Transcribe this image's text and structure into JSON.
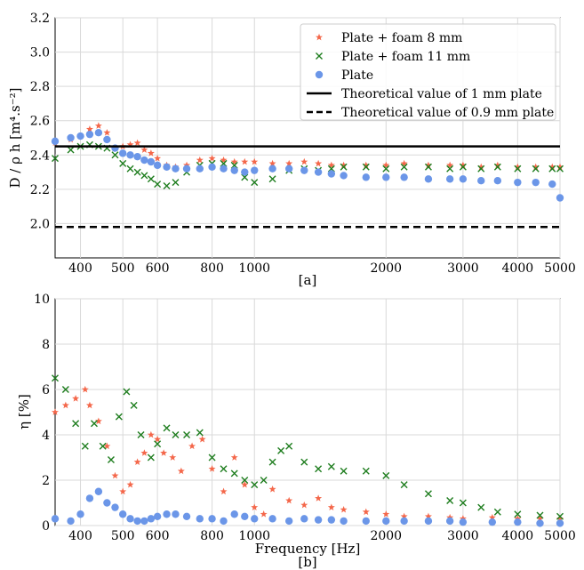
{
  "chart_data": [
    {
      "id": "top",
      "type": "scatter",
      "xscale": "log",
      "xlim": [
        350,
        5000
      ],
      "ylim": [
        1.8,
        3.2
      ],
      "x_ticks": [
        400,
        500,
        600,
        800,
        1000,
        2000,
        3000,
        4000,
        5000
      ],
      "x_tick_labels": [
        "400",
        "500",
        "600",
        "800",
        "1000",
        "2000",
        "3000",
        "4000",
        "5000"
      ],
      "y_ticks": [
        2.0,
        2.2,
        2.4,
        2.6,
        2.8,
        3.0,
        3.2
      ],
      "y_tick_labels": [
        "2.0",
        "2.2",
        "2.4",
        "2.6",
        "2.8",
        "3.0",
        "3.2"
      ],
      "ylabel": "D / ρ h [m⁴.s⁻²]",
      "xlabel": "[a]",
      "grid": true,
      "legend_position": "top-right",
      "series": [
        {
          "name": "Plate + foam 8 mm",
          "marker": "star",
          "color": "#f4674a",
          "x": [
            350,
            380,
            400,
            420,
            440,
            460,
            480,
            500,
            520,
            540,
            560,
            580,
            600,
            630,
            660,
            700,
            750,
            800,
            850,
            900,
            950,
            1000,
            1100,
            1200,
            1300,
            1400,
            1500,
            1600,
            1800,
            2000,
            2200,
            2500,
            2800,
            3000,
            3300,
            3600,
            4000,
            4400,
            4800,
            5000
          ],
          "y": [
            2.47,
            2.49,
            2.51,
            2.55,
            2.57,
            2.53,
            2.44,
            2.45,
            2.46,
            2.47,
            2.43,
            2.41,
            2.38,
            2.34,
            2.33,
            2.34,
            2.37,
            2.38,
            2.37,
            2.36,
            2.36,
            2.36,
            2.35,
            2.35,
            2.36,
            2.35,
            2.34,
            2.34,
            2.34,
            2.34,
            2.35,
            2.34,
            2.34,
            2.34,
            2.33,
            2.34,
            2.33,
            2.33,
            2.33,
            2.33
          ]
        },
        {
          "name": "Plate + foam 11 mm",
          "marker": "x",
          "color": "#1e7d1e",
          "x": [
            350,
            380,
            400,
            420,
            440,
            460,
            480,
            500,
            520,
            540,
            560,
            580,
            600,
            630,
            660,
            700,
            750,
            800,
            850,
            900,
            950,
            1000,
            1100,
            1200,
            1300,
            1400,
            1500,
            1600,
            1800,
            2000,
            2200,
            2500,
            2800,
            3000,
            3300,
            3600,
            4000,
            4400,
            4800,
            5000
          ],
          "y": [
            2.38,
            2.43,
            2.45,
            2.46,
            2.45,
            2.44,
            2.4,
            2.35,
            2.32,
            2.3,
            2.28,
            2.26,
            2.23,
            2.22,
            2.24,
            2.3,
            2.34,
            2.35,
            2.35,
            2.34,
            2.27,
            2.24,
            2.26,
            2.31,
            2.32,
            2.31,
            2.32,
            2.33,
            2.33,
            2.32,
            2.33,
            2.33,
            2.32,
            2.33,
            2.32,
            2.33,
            2.32,
            2.32,
            2.32,
            2.32
          ]
        },
        {
          "name": "Plate",
          "marker": "circle",
          "color": "#6b96e8",
          "x": [
            350,
            380,
            400,
            420,
            440,
            460,
            480,
            500,
            520,
            540,
            560,
            580,
            600,
            630,
            660,
            700,
            750,
            800,
            850,
            900,
            950,
            1000,
            1100,
            1200,
            1300,
            1400,
            1500,
            1600,
            1800,
            2000,
            2200,
            2500,
            2800,
            3000,
            3300,
            3600,
            4000,
            4400,
            4800,
            5000
          ],
          "y": [
            2.48,
            2.5,
            2.51,
            2.52,
            2.53,
            2.49,
            2.44,
            2.41,
            2.4,
            2.39,
            2.37,
            2.36,
            2.34,
            2.33,
            2.32,
            2.32,
            2.32,
            2.33,
            2.32,
            2.31,
            2.3,
            2.31,
            2.32,
            2.32,
            2.31,
            2.3,
            2.29,
            2.28,
            2.27,
            2.27,
            2.27,
            2.26,
            2.26,
            2.26,
            2.25,
            2.25,
            2.24,
            2.24,
            2.23,
            2.15
          ]
        },
        {
          "name": "Theoretical value of 1 mm plate",
          "marker": "solid-line",
          "color": "#000000",
          "x": [
            350,
            5000
          ],
          "y": [
            2.45,
            2.45
          ]
        },
        {
          "name": "Theoretical value of 0.9 mm plate",
          "marker": "dashed-line",
          "color": "#000000",
          "x": [
            350,
            5000
          ],
          "y": [
            1.98,
            1.98
          ]
        }
      ]
    },
    {
      "id": "bottom",
      "type": "scatter",
      "xscale": "log",
      "xlim": [
        350,
        5000
      ],
      "ylim": [
        0,
        10
      ],
      "x_ticks": [
        400,
        500,
        600,
        800,
        1000,
        2000,
        3000,
        4000,
        5000
      ],
      "x_tick_labels": [
        "400",
        "500",
        "600",
        "800",
        "1000",
        "2000",
        "3000",
        "4000",
        "5000"
      ],
      "y_ticks": [
        0,
        2,
        4,
        6,
        8,
        10
      ],
      "y_tick_labels": [
        "0",
        "2",
        "4",
        "6",
        "8",
        "10"
      ],
      "ylabel": "η [%]",
      "xlabel": "Frequency [Hz]",
      "caption": "[b]",
      "grid": true,
      "series": [
        {
          "name": "Plate + foam 8 mm",
          "marker": "star",
          "color": "#f4674a",
          "x": [
            350,
            370,
            390,
            410,
            420,
            440,
            460,
            480,
            500,
            520,
            540,
            560,
            580,
            600,
            620,
            650,
            680,
            720,
            760,
            800,
            850,
            900,
            950,
            1000,
            1050,
            1100,
            1200,
            1300,
            1400,
            1500,
            1600,
            1800,
            2000,
            2200,
            2500,
            2800,
            3000,
            3500,
            4000,
            4500,
            5000
          ],
          "y": [
            5.0,
            5.3,
            5.6,
            6.0,
            5.3,
            4.6,
            3.5,
            2.2,
            1.5,
            1.8,
            2.8,
            3.2,
            4.0,
            3.8,
            3.2,
            3.0,
            2.4,
            3.5,
            3.8,
            2.5,
            1.5,
            3.0,
            1.8,
            0.8,
            0.5,
            1.6,
            1.1,
            0.9,
            1.2,
            0.8,
            0.7,
            0.6,
            0.5,
            0.4,
            0.4,
            0.35,
            0.3,
            0.35,
            0.3,
            0.3,
            0.3
          ]
        },
        {
          "name": "Plate + foam 11 mm",
          "marker": "x",
          "color": "#1e7d1e",
          "x": [
            350,
            370,
            390,
            410,
            430,
            450,
            470,
            490,
            510,
            530,
            550,
            580,
            600,
            630,
            660,
            700,
            750,
            800,
            850,
            900,
            950,
            1000,
            1050,
            1100,
            1150,
            1200,
            1300,
            1400,
            1500,
            1600,
            1800,
            2000,
            2200,
            2500,
            2800,
            3000,
            3300,
            3600,
            4000,
            4500,
            5000
          ],
          "y": [
            6.5,
            6.0,
            4.5,
            3.5,
            4.5,
            3.5,
            2.9,
            4.8,
            5.9,
            5.3,
            4.0,
            3.0,
            3.6,
            4.3,
            4.0,
            4.0,
            4.1,
            3.0,
            2.5,
            2.3,
            2.0,
            1.8,
            2.0,
            2.8,
            3.3,
            3.5,
            2.8,
            2.5,
            2.6,
            2.4,
            2.4,
            2.2,
            1.8,
            1.4,
            1.1,
            1.0,
            0.8,
            0.6,
            0.5,
            0.45,
            0.4
          ]
        },
        {
          "name": "Plate",
          "marker": "circle",
          "color": "#6b96e8",
          "x": [
            350,
            380,
            400,
            420,
            440,
            460,
            480,
            500,
            520,
            540,
            560,
            580,
            600,
            630,
            660,
            700,
            750,
            800,
            850,
            900,
            950,
            1000,
            1100,
            1200,
            1300,
            1400,
            1500,
            1600,
            1800,
            2000,
            2200,
            2500,
            2800,
            3000,
            3500,
            4000,
            4500,
            5000
          ],
          "y": [
            0.3,
            0.2,
            0.5,
            1.2,
            1.5,
            1.0,
            0.8,
            0.5,
            0.3,
            0.2,
            0.2,
            0.3,
            0.4,
            0.5,
            0.5,
            0.4,
            0.3,
            0.3,
            0.2,
            0.5,
            0.4,
            0.3,
            0.3,
            0.2,
            0.3,
            0.25,
            0.25,
            0.2,
            0.2,
            0.2,
            0.2,
            0.2,
            0.2,
            0.15,
            0.15,
            0.15,
            0.1,
            0.1
          ]
        }
      ]
    }
  ]
}
